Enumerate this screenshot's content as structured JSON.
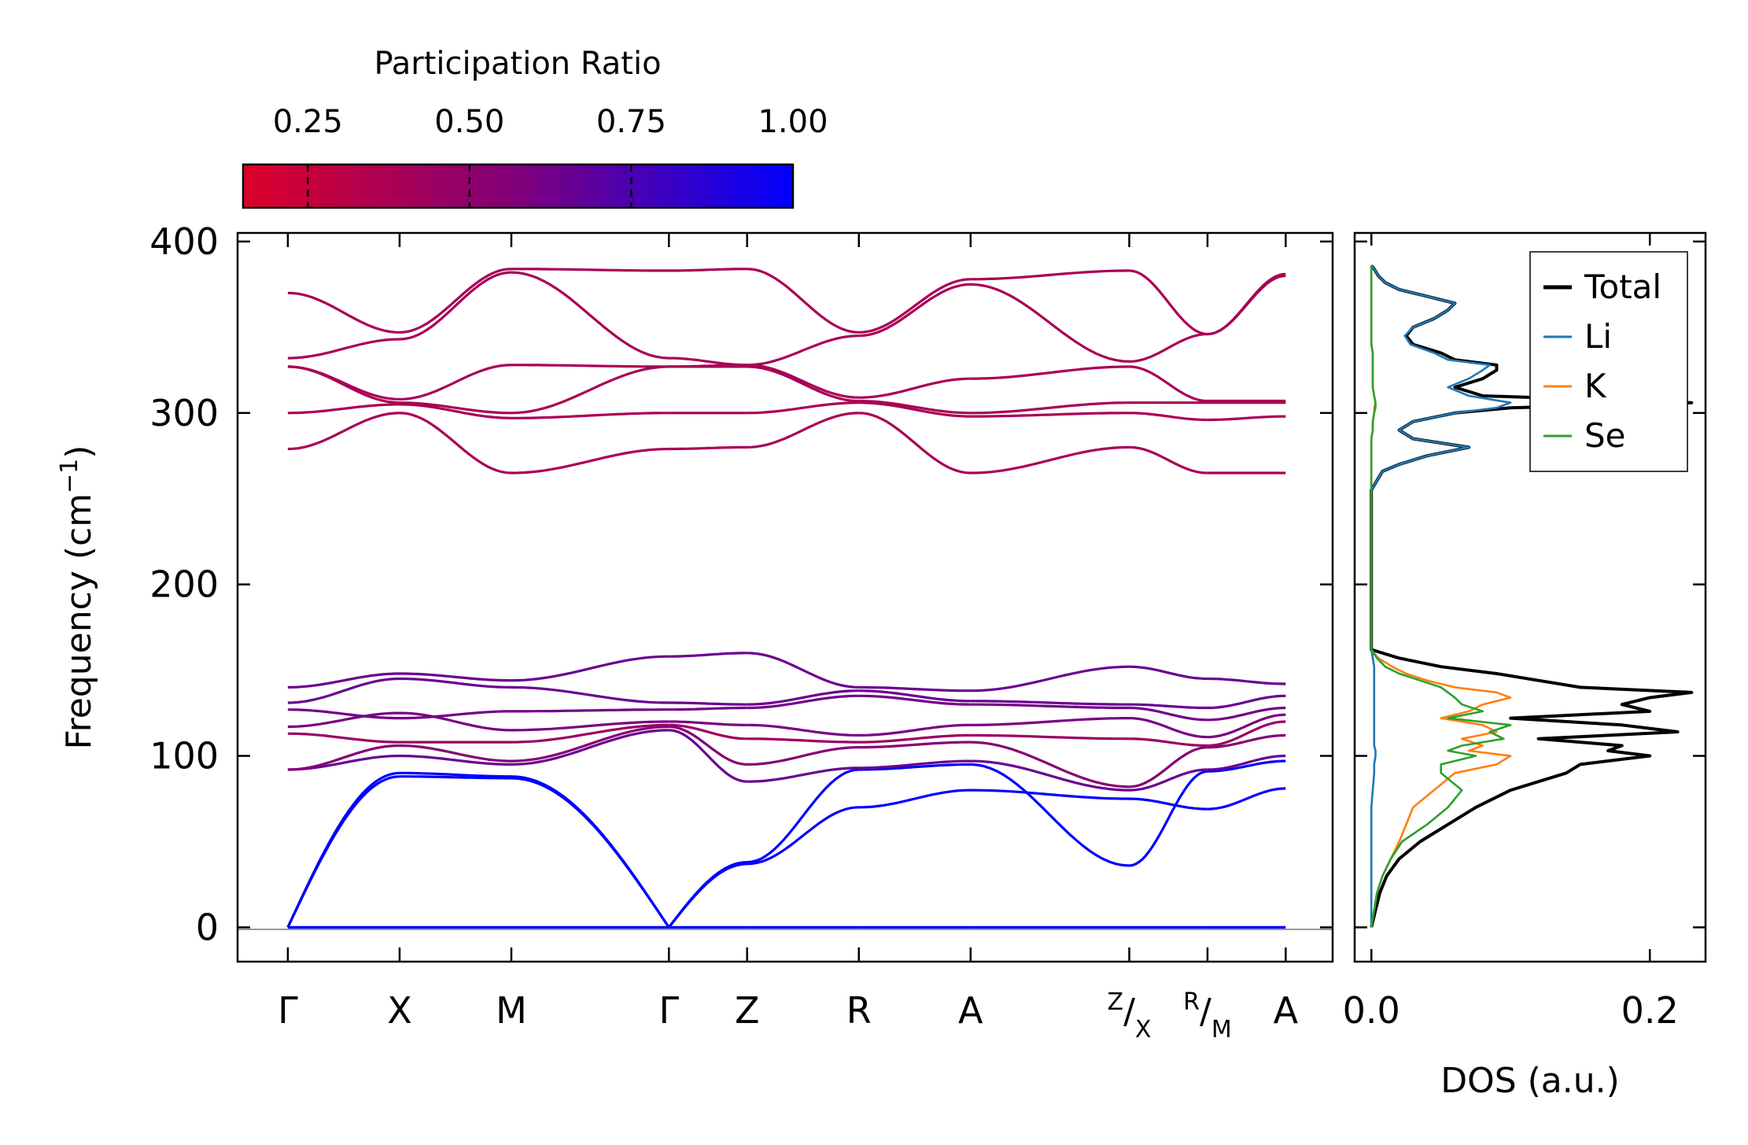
{
  "chart_data": [
    {
      "type": "line",
      "name": "phonon-band-structure",
      "ylabel": "Frequency (cm",
      "ylabel_sup": "−1",
      "ylabel_close": ")",
      "ylim": [
        -20,
        405
      ],
      "yticks": [
        0,
        100,
        200,
        300,
        400
      ],
      "ytick_labels": [
        "0",
        "100",
        "200",
        "300",
        "400"
      ],
      "xlim": [
        -0.45,
        9.35
      ],
      "xticks": [
        {
          "label": "Γ",
          "x": 0
        },
        {
          "label": "X",
          "x": 1
        },
        {
          "label": "M",
          "x": 2
        },
        {
          "label": "Γ",
          "x": 3.41
        },
        {
          "label": "Z",
          "x": 4.11
        },
        {
          "label": "R",
          "x": 5.11
        },
        {
          "label": "A",
          "x": 6.11
        },
        {
          "label": "Z",
          "label2": "X",
          "x": 7.53
        },
        {
          "label": "R",
          "label2": "M",
          "x": 8.23
        },
        {
          "label": "A",
          "x": 8.93
        }
      ],
      "segments": [
        [
          0,
          1
        ],
        [
          1,
          2
        ],
        [
          2,
          3.41
        ],
        [
          3.41,
          4.11
        ],
        [
          4.11,
          5.11
        ],
        [
          5.11,
          6.11
        ],
        [
          6.11,
          7.53
        ],
        [
          7.53,
          8.23
        ],
        [
          8.23,
          8.93
        ]
      ],
      "band_frequencies": [
        [
          0,
          0,
          0,
          0,
          0,
          0,
          0,
          0,
          0,
          0
        ],
        [
          0,
          88,
          87,
          0,
          37,
          70,
          80,
          75,
          69,
          81
        ],
        [
          0,
          90,
          88,
          0,
          38,
          92,
          95,
          36,
          91,
          97
        ],
        [
          92,
          100,
          95,
          115,
          85,
          93,
          97,
          80,
          92,
          100
        ],
        [
          92,
          106,
          97,
          117,
          95,
          105,
          108,
          82,
          105,
          112
        ],
        [
          113,
          108,
          108,
          118,
          110,
          108,
          112,
          110,
          106,
          120
        ],
        [
          117,
          125,
          115,
          120,
          118,
          112,
          118,
          122,
          111,
          124
        ],
        [
          127,
          122,
          126,
          127,
          128,
          135,
          130,
          128,
          121,
          128
        ],
        [
          131,
          145,
          140,
          131,
          130,
          138,
          132,
          130,
          128,
          135
        ],
        [
          140,
          148,
          144,
          158,
          160,
          140,
          138,
          152,
          145,
          142
        ],
        [
          279,
          300,
          265,
          279,
          280,
          300,
          265,
          280,
          265,
          265
        ],
        [
          300,
          305,
          297,
          300,
          300,
          306,
          298,
          300,
          296,
          298
        ],
        [
          327,
          306,
          300,
          327,
          327,
          307,
          300,
          306,
          306,
          306
        ],
        [
          327,
          308,
          328,
          327,
          328,
          309,
          320,
          327,
          307,
          307
        ],
        [
          332,
          343,
          382,
          332,
          328,
          345,
          375,
          330,
          346,
          380
        ],
        [
          370,
          347,
          384,
          383,
          384,
          347,
          378,
          383,
          346,
          381
        ]
      ],
      "participation_ratio": [
        1.0,
        1.0,
        1.0,
        0.65,
        0.55,
        0.45,
        0.6,
        0.62,
        0.65,
        0.65,
        0.38,
        0.38,
        0.38,
        0.38,
        0.38,
        0.38
      ],
      "colorbar": {
        "title": "Participation Ratio",
        "range": [
          0.15,
          1.0
        ],
        "ticks": [
          0.25,
          0.5,
          0.75,
          1.0
        ],
        "tick_labels": [
          "0.25",
          "0.50",
          "0.75",
          "1.00"
        ],
        "low_color": "#dc0029",
        "mid_color": "#80007a",
        "high_color": "#0000ff"
      }
    },
    {
      "type": "line",
      "name": "density-of-states",
      "xlabel": "DOS (a.u.)",
      "xlim": [
        -0.012,
        0.24
      ],
      "xticks": [
        0.0,
        0.2
      ],
      "xtick_labels": [
        "0.0",
        "0.2"
      ],
      "ylim": [
        -20,
        405
      ],
      "legend_position": "top-right",
      "freq": [
        0,
        10,
        20,
        30,
        40,
        50,
        60,
        70,
        80,
        90,
        95,
        100,
        103,
        106,
        110,
        114,
        118,
        122,
        126,
        130,
        134,
        137,
        140,
        144,
        148,
        152,
        157,
        162,
        200,
        255,
        262,
        266,
        270,
        275,
        280,
        285,
        290,
        295,
        300,
        303,
        306,
        310,
        315,
        320,
        325,
        328,
        331,
        335,
        340,
        345,
        350,
        355,
        360,
        364,
        368,
        372,
        376,
        380,
        384,
        386
      ],
      "series": [
        {
          "name": "Total",
          "color": "#000000",
          "values": [
            0,
            0.003,
            0.006,
            0.011,
            0.02,
            0.035,
            0.055,
            0.075,
            0.1,
            0.14,
            0.15,
            0.2,
            0.17,
            0.18,
            0.12,
            0.22,
            0.18,
            0.1,
            0.2,
            0.18,
            0.2,
            0.23,
            0.15,
            0.12,
            0.09,
            0.05,
            0.02,
            0,
            0,
            0,
            0.005,
            0.008,
            0.02,
            0.04,
            0.07,
            0.03,
            0.02,
            0.03,
            0.06,
            0.1,
            0.23,
            0.08,
            0.06,
            0.08,
            0.09,
            0.09,
            0.06,
            0.05,
            0.03,
            0.025,
            0.03,
            0.045,
            0.055,
            0.06,
            0.04,
            0.02,
            0.01,
            0.005,
            0.002,
            0
          ]
        },
        {
          "name": "Li",
          "color": "#1f77b4",
          "values": [
            0,
            0,
            0,
            0,
            0,
            0,
            0,
            0,
            0.001,
            0.002,
            0.002,
            0.003,
            0.003,
            0.002,
            0.002,
            0.002,
            0.002,
            0.002,
            0.002,
            0.002,
            0.002,
            0.002,
            0.002,
            0.002,
            0.002,
            0.002,
            0.001,
            0,
            0,
            0,
            0.005,
            0.008,
            0.02,
            0.04,
            0.07,
            0.03,
            0.02,
            0.03,
            0.06,
            0.09,
            0.1,
            0.07,
            0.055,
            0.07,
            0.08,
            0.085,
            0.055,
            0.045,
            0.028,
            0.024,
            0.03,
            0.045,
            0.055,
            0.06,
            0.04,
            0.02,
            0.01,
            0.005,
            0.002,
            0
          ]
        },
        {
          "name": "K",
          "color": "#ff7f0e",
          "values": [
            0,
            0.002,
            0.004,
            0.008,
            0.014,
            0.02,
            0.025,
            0.03,
            0.045,
            0.06,
            0.09,
            0.1,
            0.07,
            0.08,
            0.065,
            0.09,
            0.08,
            0.05,
            0.07,
            0.08,
            0.1,
            0.09,
            0.06,
            0.04,
            0.025,
            0.015,
            0.005,
            0,
            0,
            0,
            0,
            0,
            0,
            0,
            0,
            0,
            0.001,
            0.001,
            0.002,
            0.002,
            0.003,
            0.002,
            0.001,
            0.001,
            0.001,
            0.001,
            0.001,
            0.001,
            0,
            0,
            0,
            0,
            0,
            0,
            0,
            0,
            0,
            0,
            0,
            0
          ]
        },
        {
          "name": "Se",
          "color": "#2ca02c",
          "values": [
            0,
            0.002,
            0.004,
            0.008,
            0.014,
            0.022,
            0.04,
            0.055,
            0.065,
            0.05,
            0.05,
            0.075,
            0.055,
            0.065,
            0.095,
            0.085,
            0.1,
            0.055,
            0.08,
            0.065,
            0.06,
            0.055,
            0.05,
            0.035,
            0.02,
            0.01,
            0.004,
            0,
            0,
            0,
            0,
            0,
            0,
            0,
            0,
            0,
            0.001,
            0.001,
            0.002,
            0.003,
            0.003,
            0.002,
            0.001,
            0.001,
            0.001,
            0.001,
            0.001,
            0.001,
            0,
            0,
            0,
            0,
            0,
            0,
            0,
            0,
            0,
            0,
            0,
            0
          ]
        }
      ]
    }
  ]
}
